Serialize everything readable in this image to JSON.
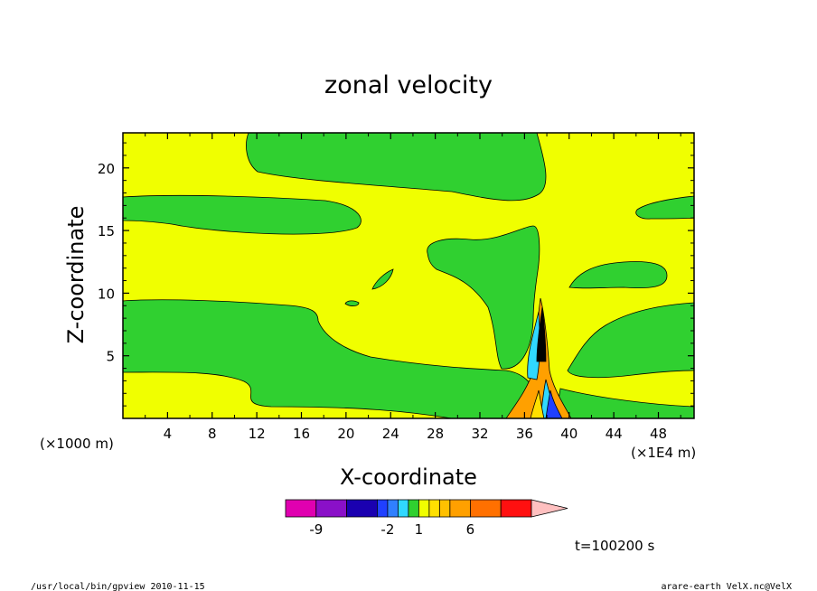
{
  "chart_data": {
    "type": "heatmap",
    "title": "zonal velocity",
    "xlabel": "X-coordinate",
    "ylabel": "Z-coordinate",
    "x_unit": "(×1E4 m)",
    "y_unit": "(×1000 m)",
    "x_ticks": [
      "4",
      "8",
      "12",
      "16",
      "20",
      "24",
      "28",
      "32",
      "36",
      "40",
      "44",
      "48"
    ],
    "x_tick_values": [
      4,
      8,
      12,
      16,
      20,
      24,
      28,
      32,
      36,
      40,
      44,
      48
    ],
    "y_ticks": [
      "5",
      "10",
      "15",
      "20"
    ],
    "y_tick_values": [
      5,
      10,
      15,
      20
    ],
    "xlim": [
      0,
      51.2
    ],
    "ylim": [
      0,
      22.8
    ],
    "colorbar": {
      "levels": [
        -12,
        -9,
        -6,
        -3,
        -2,
        -1,
        0,
        1,
        2,
        3,
        4,
        6,
        9,
        12
      ],
      "tick_labels": [
        "-9",
        "-2",
        "1",
        "6"
      ],
      "tick_values": [
        -9,
        -2,
        1,
        6
      ],
      "colors": [
        "#e000b0",
        "#8a10c8",
        "#1a00b0",
        "#2040ff",
        "#3080ff",
        "#30d8ff",
        "#30d030",
        "#f0ff00",
        "#ffe000",
        "#ffc000",
        "#ffa000",
        "#ff7000",
        "#ff1010",
        "#ff8080",
        "#ffc0c0"
      ]
    },
    "time_label": "t=100200 s",
    "colors": {
      "positive_small": "#f0ff00",
      "negative_small": "#30d030"
    }
  },
  "footer": {
    "left": "/usr/local/bin/gpview   2010-11-15",
    "right": "arare-earth_VelX.nc@VelX"
  }
}
